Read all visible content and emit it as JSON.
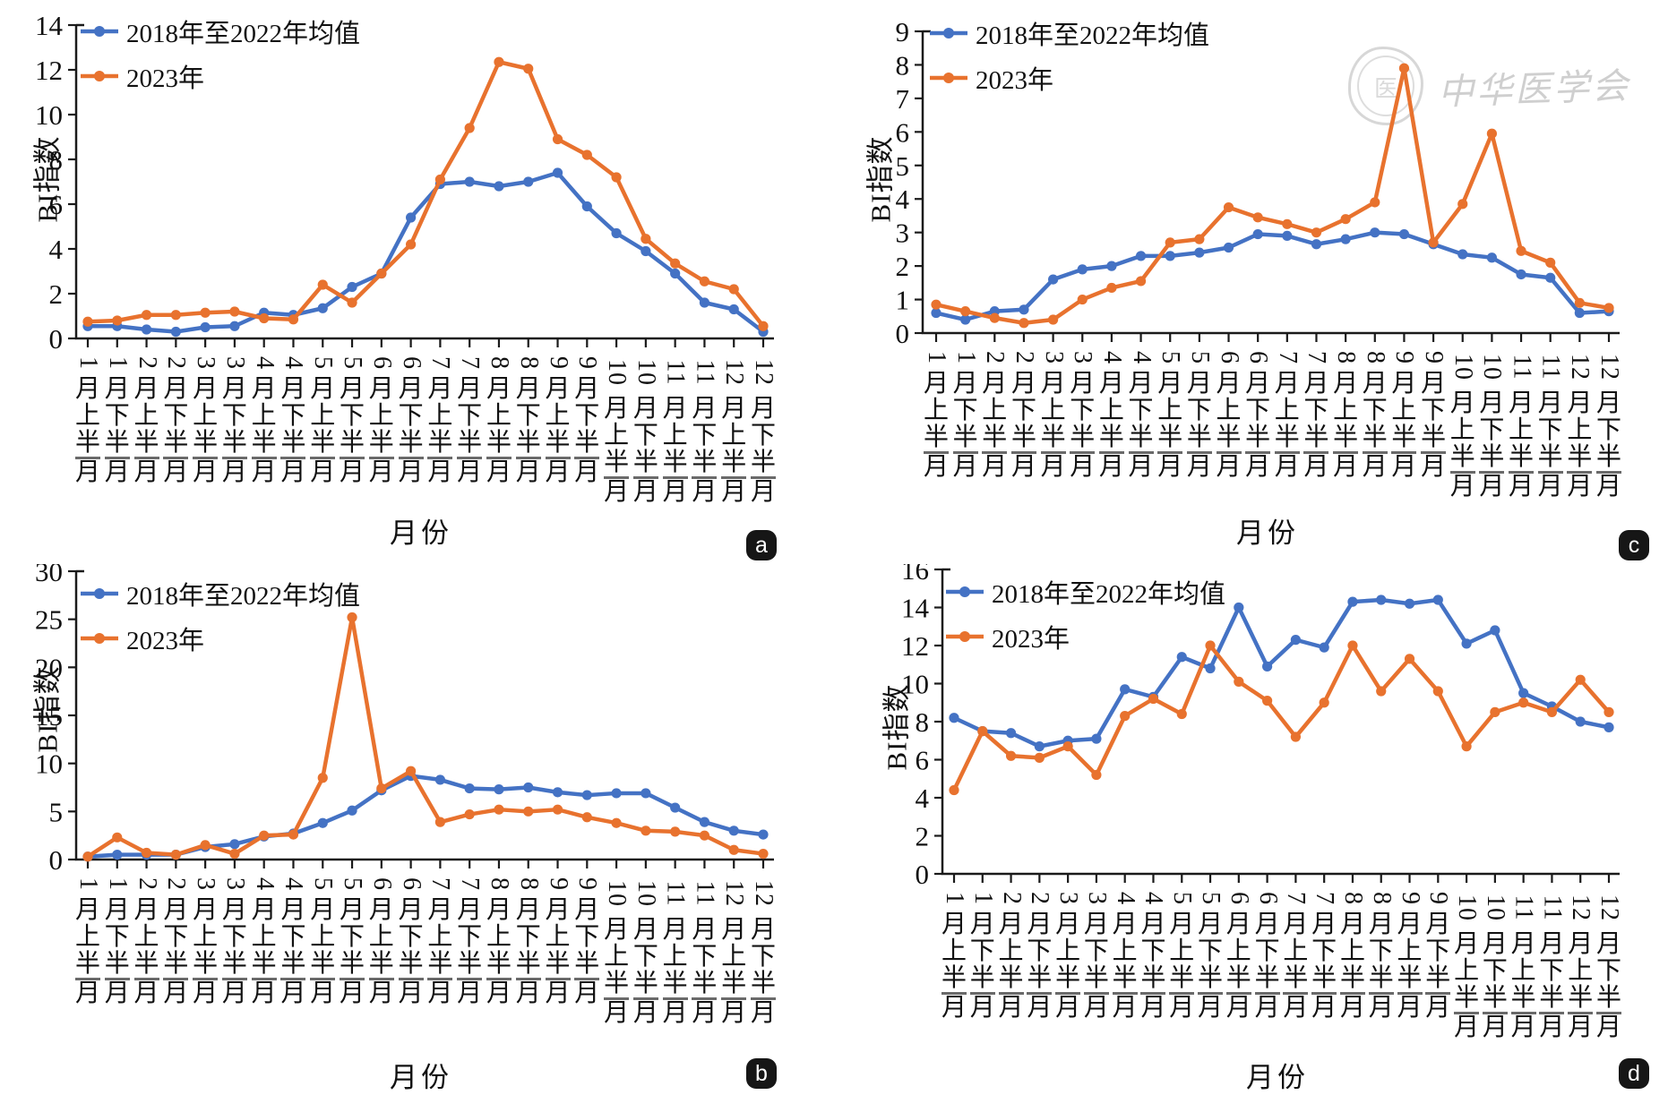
{
  "axes": {
    "y_label": "BI指数",
    "x_label": "月份"
  },
  "legend": {
    "position": "top-left",
    "entries": [
      "2018年至2022年均值",
      "2023年"
    ]
  },
  "watermark": {
    "text": "中华医学会"
  },
  "colors": {
    "mean_series": "#4472C4",
    "year2023_series": "#E8722E",
    "axis": "#1a1a1a"
  },
  "chart_data": {
    "type": "line",
    "xlabel": "月份",
    "ylabel": "BI指数",
    "grid": false,
    "categories": [
      "1月上半月",
      "1月下半月",
      "2月上半月",
      "2月下半月",
      "3月上半月",
      "3月下半月",
      "4月上半月",
      "4月下半月",
      "5月上半月",
      "5月下半月",
      "6月上半月",
      "6月下半月",
      "7月上半月",
      "7月下半月",
      "8月上半月",
      "8月下半月",
      "9月上半月",
      "9月下半月",
      "10月上半月",
      "10月下半月",
      "11月上半月",
      "11月下半月",
      "12月上半月",
      "12月下半月"
    ],
    "panels": [
      {
        "tag": "a",
        "ylim": [
          0,
          14
        ],
        "ystep": 2,
        "series": [
          {
            "name": "2018年至2022年均值",
            "color": "#4472C4",
            "values": [
              0.55,
              0.55,
              0.4,
              0.3,
              0.5,
              0.55,
              1.15,
              1.05,
              1.35,
              2.3,
              2.9,
              5.4,
              6.9,
              7.0,
              6.8,
              7.0,
              7.4,
              5.9,
              4.7,
              3.9,
              2.9,
              1.6,
              1.3,
              0.3
            ]
          },
          {
            "name": "2023年",
            "color": "#E8722E",
            "values": [
              0.75,
              0.8,
              1.05,
              1.05,
              1.15,
              1.2,
              0.9,
              0.85,
              2.4,
              1.6,
              2.9,
              4.2,
              7.1,
              9.4,
              12.35,
              12.05,
              8.9,
              8.2,
              7.2,
              4.45,
              3.35,
              2.55,
              2.2,
              0.55
            ]
          }
        ]
      },
      {
        "tag": "b",
        "ylim": [
          0,
          30
        ],
        "ystep": 5,
        "series": [
          {
            "name": "2018年至2022年均值",
            "color": "#4472C4",
            "values": [
              0.3,
              0.5,
              0.5,
              0.5,
              1.3,
              1.6,
              2.4,
              2.7,
              3.8,
              5.1,
              7.2,
              8.7,
              8.3,
              7.4,
              7.3,
              7.5,
              7.0,
              6.7,
              6.9,
              6.9,
              5.4,
              3.9,
              3.0,
              2.6
            ]
          },
          {
            "name": "2023年",
            "color": "#E8722E",
            "values": [
              0.3,
              2.3,
              0.7,
              0.5,
              1.5,
              0.6,
              2.5,
              2.6,
              8.5,
              25.2,
              7.4,
              9.2,
              3.9,
              4.7,
              5.2,
              5.0,
              5.2,
              4.4,
              3.8,
              3.0,
              2.9,
              2.5,
              1.0,
              0.6
            ]
          }
        ]
      },
      {
        "tag": "c",
        "ylim": [
          0,
          9
        ],
        "ystep": 1,
        "series": [
          {
            "name": "2018年至2022年均值",
            "color": "#4472C4",
            "values": [
              0.6,
              0.4,
              0.65,
              0.7,
              1.6,
              1.9,
              2.0,
              2.3,
              2.3,
              2.4,
              2.55,
              2.95,
              2.9,
              2.65,
              2.8,
              3.0,
              2.95,
              2.65,
              2.35,
              2.25,
              1.75,
              1.65,
              0.6,
              0.65
            ]
          },
          {
            "name": "2023年",
            "color": "#E8722E",
            "values": [
              0.85,
              0.65,
              0.45,
              0.3,
              0.4,
              1.0,
              1.35,
              1.55,
              2.7,
              2.8,
              3.75,
              3.45,
              3.25,
              3.0,
              3.4,
              3.9,
              7.9,
              2.7,
              3.85,
              5.95,
              2.45,
              2.1,
              0.9,
              0.75
            ]
          }
        ]
      },
      {
        "tag": "d",
        "ylim": [
          0,
          16
        ],
        "ystep": 2,
        "series": [
          {
            "name": "2018年至2022年均值",
            "color": "#4472C4",
            "values": [
              8.2,
              7.5,
              7.4,
              6.7,
              7.0,
              7.1,
              9.7,
              9.3,
              11.4,
              10.8,
              14.0,
              10.9,
              12.3,
              11.9,
              14.3,
              14.4,
              14.2,
              14.4,
              12.1,
              12.8,
              9.5,
              8.8,
              8.0,
              7.7
            ]
          },
          {
            "name": "2023年",
            "color": "#E8722E",
            "values": [
              4.4,
              7.5,
              6.2,
              6.1,
              6.7,
              5.2,
              8.3,
              9.2,
              8.4,
              12.0,
              10.1,
              9.1,
              7.2,
              9.0,
              12.0,
              9.6,
              11.3,
              9.6,
              6.7,
              8.5,
              9.0,
              8.5,
              10.2,
              8.5
            ]
          }
        ]
      }
    ]
  }
}
